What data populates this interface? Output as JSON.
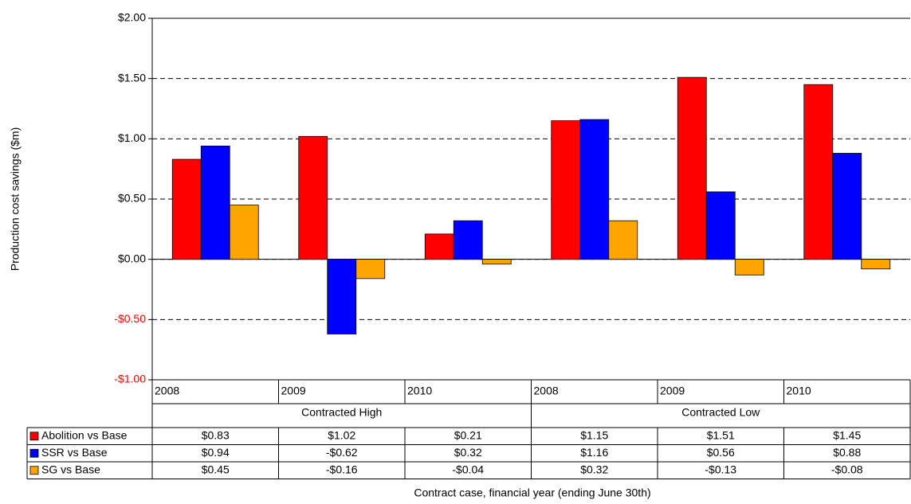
{
  "chart_data": {
    "type": "bar",
    "categories": [
      "2008",
      "2009",
      "2010",
      "2008",
      "2009",
      "2010"
    ],
    "groups": [
      "Contracted High",
      "Contracted Low"
    ],
    "series": [
      {
        "name": "Abolition vs Base",
        "color": "#ff0000",
        "values": [
          0.83,
          1.02,
          0.21,
          1.15,
          1.51,
          1.45
        ],
        "value_labels": [
          "$0.83",
          "$1.02",
          "$0.21",
          "$1.15",
          "$1.51",
          "$1.45"
        ]
      },
      {
        "name": "SSR vs Base",
        "color": "#0000ff",
        "values": [
          0.94,
          -0.62,
          0.32,
          1.16,
          0.56,
          0.88
        ],
        "value_labels": [
          "$0.94",
          "-$0.62",
          "$0.32",
          "$1.16",
          "$0.56",
          "$0.88"
        ]
      },
      {
        "name": "SG vs Base",
        "color": "#ffa500",
        "values": [
          0.45,
          -0.16,
          -0.04,
          0.32,
          -0.13,
          -0.08
        ],
        "value_labels": [
          "$0.45",
          "-$0.16",
          "-$0.04",
          "$0.32",
          "-$0.13",
          "-$0.08"
        ]
      }
    ],
    "ylim": [
      -1,
      2
    ],
    "yticks": [
      {
        "value": -1,
        "label": "-$1.00"
      },
      {
        "value": -0.5,
        "label": "-$0.50"
      },
      {
        "value": 0,
        "label": "$0.00"
      },
      {
        "value": 0.5,
        "label": "$0.50"
      },
      {
        "value": 1,
        "label": "$1.00"
      },
      {
        "value": 1.5,
        "label": "$1.50"
      },
      {
        "value": 2,
        "label": "$2.00"
      }
    ],
    "negative_tick_color": "#ff0000",
    "grid": true,
    "y_label": "Production cost savings ($m)",
    "x_label": "Contract case, financial year (ending June 30th)"
  }
}
